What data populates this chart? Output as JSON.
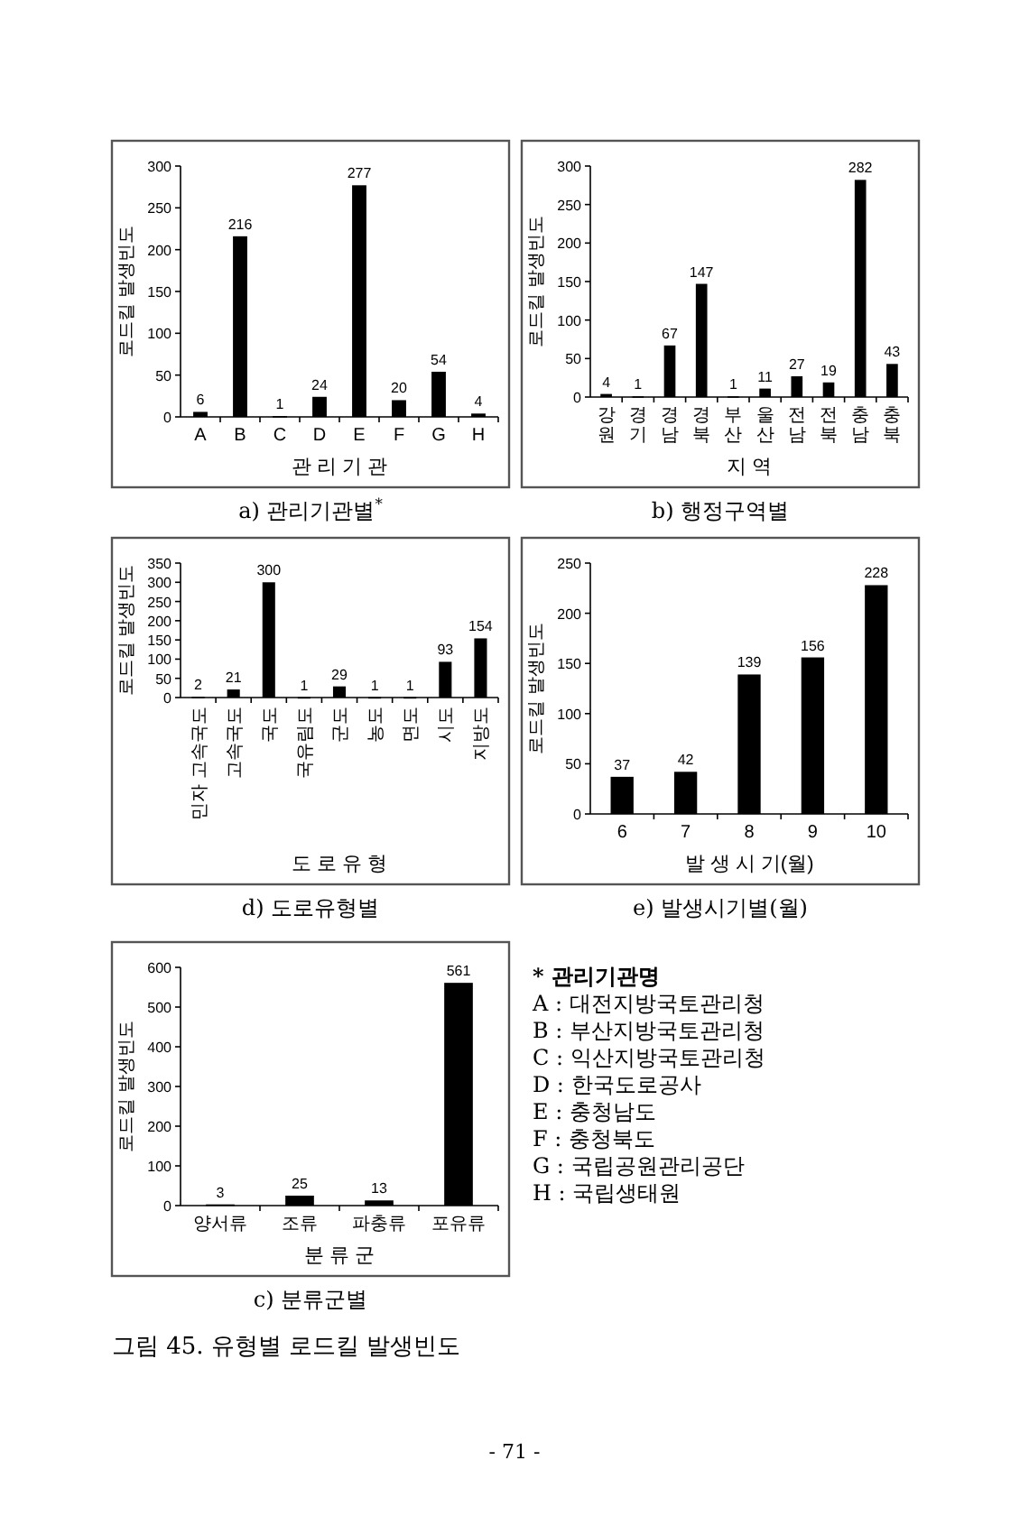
{
  "chart_data": [
    {
      "type": "bar",
      "title": "a) 관리기관별$^{*}$",
      "xlabel": "관 리 기 관",
      "ylabel": "로드킬 발생빈도",
      "categories": [
        "A",
        "B",
        "C",
        "D",
        "E",
        "F",
        "G",
        "H"
      ],
      "values": [
        6,
        216,
        1,
        24,
        277,
        20,
        54,
        4
      ],
      "color": "#000000",
      "ylim": [
        0,
        300
      ],
      "yticks": [
        0,
        50,
        100,
        150,
        200,
        250,
        300
      ],
      "data_labels": true
    },
    {
      "type": "bar",
      "title": "b) 행정구역별",
      "xlabel": "지 역",
      "ylabel": "로드킬 발생빈도",
      "categories": [
        "강원",
        "경기",
        "경남",
        "경북",
        "부산",
        "울산",
        "전남",
        "전북",
        "충남",
        "충북"
      ],
      "values": [
        4,
        1,
        67,
        147,
        1,
        11,
        27,
        19,
        282,
        43
      ],
      "color": "#000000",
      "ylim": [
        0,
        300
      ],
      "yticks": [
        0,
        50,
        100,
        150,
        200,
        250,
        300
      ],
      "data_labels": true
    },
    {
      "type": "bar",
      "title": "d) 도로유형별",
      "xlabel": "도 로 유 형",
      "ylabel": "로드킬 발생빈도",
      "categories": [
        "민자 고속국도",
        "고속국도",
        "국도",
        "국유림도",
        "군도",
        "농도",
        "면도",
        "시도",
        "지방도"
      ],
      "values": [
        2,
        21,
        300,
        1,
        29,
        1,
        1,
        93,
        154
      ],
      "color": "#000000",
      "ylim": [
        0,
        350
      ],
      "yticks": [
        0,
        50,
        100,
        150,
        200,
        250,
        300,
        350
      ],
      "data_labels": true
    },
    {
      "type": "bar",
      "title": "e) 발생시기별(월)",
      "xlabel": "발 생 시 기(월)",
      "ylabel": "로드킬 발생빈도",
      "categories": [
        "6",
        "7",
        "8",
        "9",
        "10"
      ],
      "values": [
        37,
        42,
        139,
        156,
        228
      ],
      "color": "#000000",
      "ylim": [
        0,
        250
      ],
      "yticks": [
        0,
        50,
        100,
        150,
        200,
        250
      ],
      "data_labels": true
    },
    {
      "type": "bar",
      "title": "c) 분류군별",
      "xlabel": "분 류 군",
      "ylabel": "로드킬 발생빈도",
      "categories": [
        "양서류",
        "조류",
        "파충류",
        "포유류"
      ],
      "values": [
        3,
        25,
        13,
        561
      ],
      "color": "#000000",
      "ylim": [
        0,
        600
      ],
      "yticks": [
        0,
        100,
        200,
        300,
        400,
        500,
        600
      ],
      "data_labels": true,
      "annotations": [
        "그림 45. 유형별 로드킬 발생빈도",
        "- 71 -"
      ]
    },
    {
      "type": "other",
      "title": "* 관리기관명",
      "annotations": [
        "A : 대전지방국토관리청",
        "B : 부산지방국토관리청",
        "C : 익산지방국토관리청",
        "D : 한국도로공사",
        "E : 충청남도",
        "F : 충청북도",
        "G : 국립공원관리공단",
        "H : 국립생태원"
      ]
    }
  ]
}
